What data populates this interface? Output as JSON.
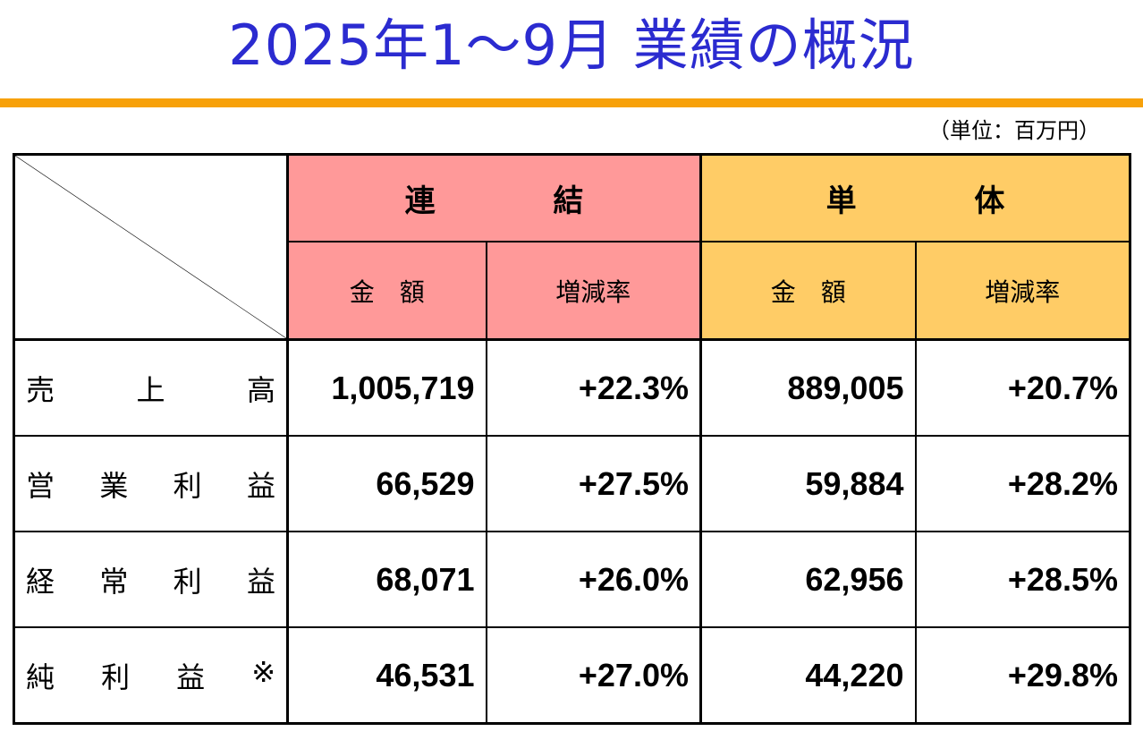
{
  "title": "2025年1～9月 業績の概況",
  "unit": "（単位：百万円）",
  "headers": {
    "consolidated": "連 結",
    "standalone": "単 体",
    "amount": "金　額",
    "growth": "増減率"
  },
  "colors": {
    "title": "#2b2bd0",
    "rule": "#f7a10a",
    "consolidated_bg": "#ff9999",
    "standalone_bg": "#ffcc66"
  },
  "rows": [
    {
      "label_chars": [
        "売",
        "上",
        "高"
      ],
      "cons_amount": "1,005,719",
      "cons_growth": "+22.3%",
      "stand_amount": "889,005",
      "stand_growth": "+20.7%"
    },
    {
      "label_chars": [
        "営",
        "業",
        "利",
        "益"
      ],
      "cons_amount": "66,529",
      "cons_growth": "+27.5%",
      "stand_amount": "59,884",
      "stand_growth": "+28.2%"
    },
    {
      "label_chars": [
        "経",
        "常",
        "利",
        "益"
      ],
      "cons_amount": "68,071",
      "cons_growth": "+26.0%",
      "stand_amount": "62,956",
      "stand_growth": "+28.5%"
    },
    {
      "label_chars": [
        "純",
        "利",
        "益",
        "※"
      ],
      "cons_amount": "46,531",
      "cons_growth": "+27.0%",
      "stand_amount": "44,220",
      "stand_growth": "+29.8%"
    }
  ]
}
